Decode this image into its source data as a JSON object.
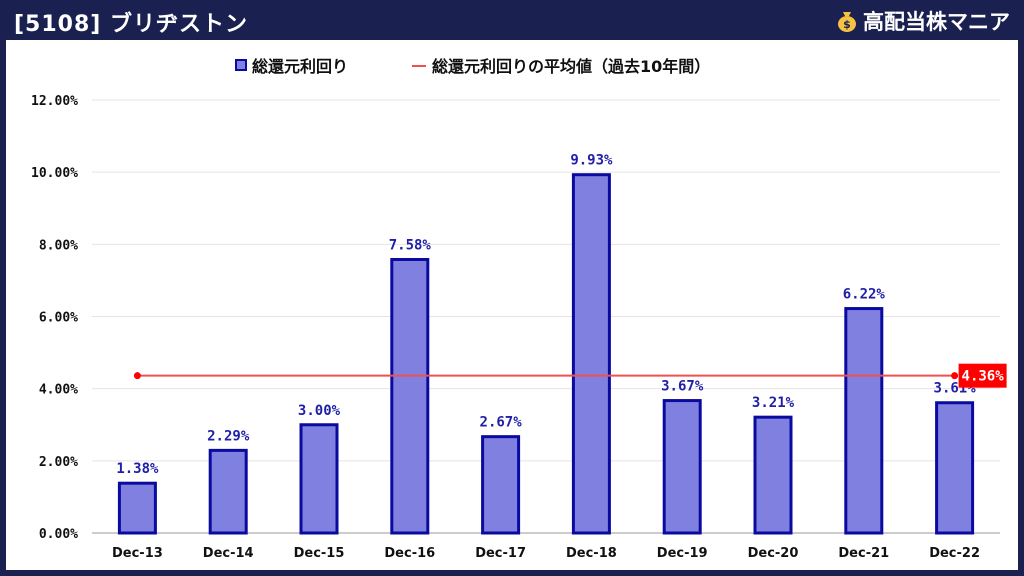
{
  "header": {
    "title": "[5108] ブリヂストン",
    "brand": "高配当株マニア"
  },
  "colors": {
    "bar_fill": "#8080e0",
    "bar_stroke": "#0a0aa0",
    "avg_line": "#f05050",
    "avg_label_bg": "#ff0000",
    "header_bg": "#1a2151"
  },
  "chart_data": {
    "type": "bar",
    "categories": [
      "Dec-13",
      "Dec-14",
      "Dec-15",
      "Dec-16",
      "Dec-17",
      "Dec-18",
      "Dec-19",
      "Dec-20",
      "Dec-21",
      "Dec-22"
    ],
    "series": [
      {
        "name": "総還元利回り",
        "values": [
          1.38,
          2.29,
          3.0,
          7.58,
          2.67,
          9.93,
          3.67,
          3.21,
          6.22,
          3.61
        ]
      }
    ],
    "data_labels": [
      "1.38%",
      "2.29%",
      "3.00%",
      "7.58%",
      "2.67%",
      "9.93%",
      "3.67%",
      "3.21%",
      "6.22%",
      "3.61%"
    ],
    "average": {
      "name": "総還元利回りの平均値（過去10年間）",
      "value": 4.36,
      "label": "4.36%"
    },
    "ylim": [
      0,
      12
    ],
    "yticks": [
      "0.00%",
      "2.00%",
      "4.00%",
      "6.00%",
      "8.00%",
      "10.00%",
      "12.00%"
    ],
    "legend_position": "top-center",
    "grid": true
  }
}
